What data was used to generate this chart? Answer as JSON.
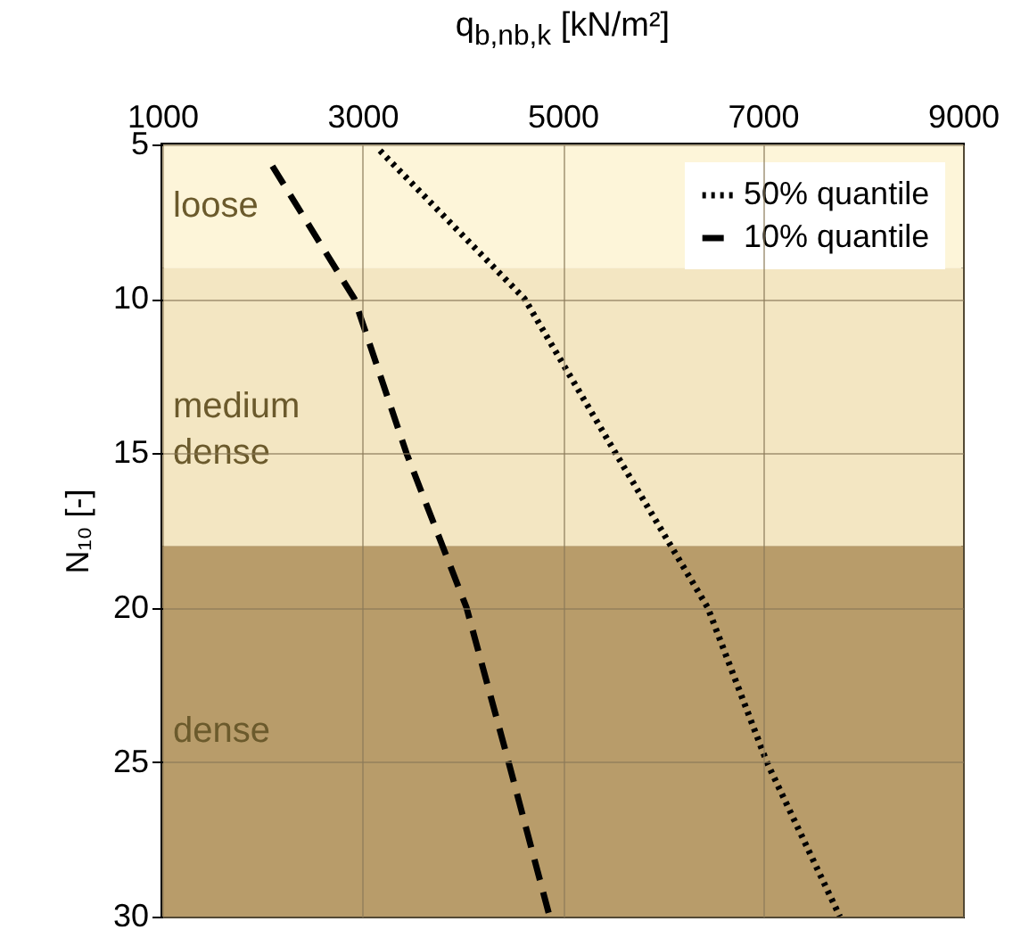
{
  "chart_data": {
    "type": "line",
    "xlabel": "q$_{b,nb,k}$ [kN/m²]",
    "ylabel": "N₁₀ [-]",
    "xlim": [
      1000,
      9000
    ],
    "xticks": [
      1000,
      3000,
      5000,
      7000,
      9000
    ],
    "ylim": [
      30,
      5
    ],
    "yticks": [
      5,
      10,
      15,
      20,
      25,
      30
    ],
    "series": [
      {
        "name": "50% quantile",
        "color": "#000000",
        "line_style": "dotted",
        "x": [
          3175,
          4620,
          5530,
          6450,
          7040,
          7770
        ],
        "values": [
          5.2,
          10,
          15,
          20,
          25,
          30
        ]
      },
      {
        "name": "10% quantile",
        "color": "#000000",
        "line_style": "dashed",
        "x": [
          2100,
          2920,
          3440,
          4040,
          4460,
          4870
        ],
        "values": [
          5.7,
          10,
          15,
          20,
          25,
          30
        ]
      }
    ],
    "bands": [
      {
        "axis": "y",
        "from": 5,
        "to": 9,
        "label": "loose",
        "color": "#fdf5d9"
      },
      {
        "axis": "y",
        "from": 9,
        "to": 18,
        "label": "medium dense",
        "color": "#f3e6c2"
      },
      {
        "axis": "y",
        "from": 18,
        "to": 30,
        "label": "dense",
        "color": "#b89c6a"
      }
    ],
    "grid": true,
    "legend": "top right"
  }
}
